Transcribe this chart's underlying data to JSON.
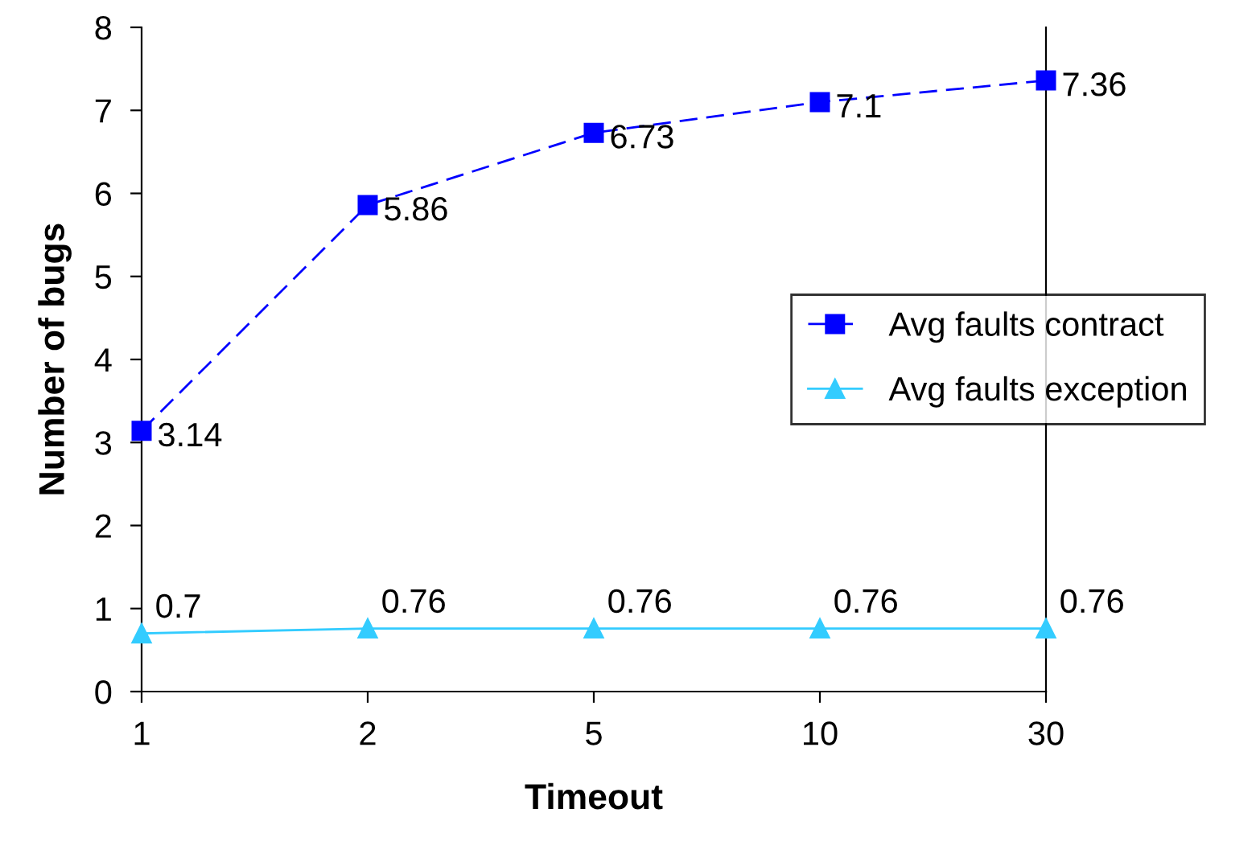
{
  "chart_data": {
    "type": "line",
    "xlabel": "Timeout",
    "ylabel": "Number of bugs",
    "categories": [
      "1",
      "2",
      "5",
      "10",
      "30"
    ],
    "series": [
      {
        "name": "Avg faults contract",
        "color": "#0000ff",
        "values": [
          3.14,
          5.86,
          6.73,
          7.1,
          7.36
        ],
        "marker": "square",
        "line_style": "dashed"
      },
      {
        "name": "Avg faults exception",
        "color": "#33ccff",
        "values": [
          0.7,
          0.76,
          0.76,
          0.76,
          0.76
        ],
        "marker": "triangle",
        "line_style": "solid"
      }
    ],
    "ylim": [
      0,
      8
    ],
    "yticks": [
      0,
      1,
      2,
      3,
      4,
      5,
      6,
      7,
      8
    ],
    "data_labels": true,
    "grid": false,
    "legend": "right"
  }
}
